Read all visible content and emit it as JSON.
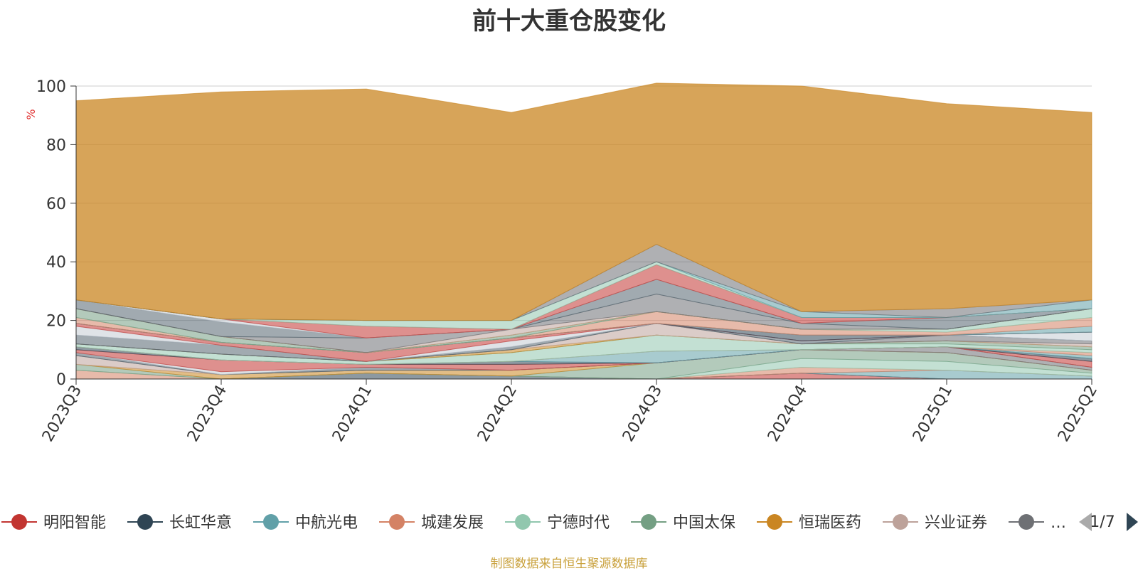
{
  "title": "前十大重仓股变化",
  "footer": "制图数据来自恒生聚源数据库",
  "legend_page": "1/7",
  "chart_data": {
    "type": "area",
    "stacked": true,
    "title": "前十大重仓股变化",
    "ylabel": "%",
    "ylim": [
      0,
      100
    ],
    "yticks": [
      0,
      20,
      40,
      60,
      80,
      100
    ],
    "grid": true,
    "legend_position": "bottom",
    "categories": [
      "2023Q3",
      "2023Q4",
      "2024Q1",
      "2024Q2",
      "2024Q3",
      "2024Q4",
      "2025Q1",
      "2025Q2"
    ],
    "series": [
      {
        "name": "明阳智能",
        "color": "#c23531",
        "values": [
          0,
          0,
          0,
          0,
          0,
          2,
          0,
          0
        ]
      },
      {
        "name": "长虹华意",
        "color": "#2f4554",
        "values": [
          0,
          0,
          2,
          1,
          0,
          0,
          0,
          0
        ]
      },
      {
        "name": "中航光电",
        "color": "#61a0a8",
        "values": [
          0,
          0,
          0,
          0,
          0,
          0,
          3,
          1
        ]
      },
      {
        "name": "城建发展",
        "color": "#d48265",
        "values": [
          3,
          0,
          0,
          0,
          0,
          2,
          0,
          0
        ]
      },
      {
        "name": "宁德时代",
        "color": "#91c7ae",
        "values": [
          0,
          0,
          0,
          0,
          0,
          3,
          3,
          1
        ]
      },
      {
        "name": "中国太保",
        "color": "#749f83",
        "values": [
          2,
          0,
          0,
          0,
          5.5,
          3,
          3,
          1
        ]
      },
      {
        "name": "恒瑞医药",
        "color": "#ca8622",
        "values": [
          0,
          1.5,
          1,
          2,
          0,
          0,
          0,
          0
        ]
      },
      {
        "name": "兴业证券",
        "color": "#bda29a",
        "values": [
          3,
          0,
          0,
          0,
          0,
          0,
          0,
          0
        ]
      },
      {
        "name": "…",
        "color": "#6e7074",
        "values": [
          0,
          0,
          0,
          0,
          0,
          0,
          2,
          1
        ]
      },
      {
        "name": "",
        "color": "#546570",
        "values": [
          1,
          0,
          1,
          0,
          0,
          0,
          0,
          0
        ]
      },
      {
        "name": "",
        "color": "#c4ccd3",
        "values": [
          0,
          1,
          0,
          0,
          0,
          0,
          0,
          0
        ]
      },
      {
        "name": "",
        "color": "#c23531",
        "values": [
          1,
          4,
          1,
          2,
          0,
          0,
          0,
          2
        ]
      },
      {
        "name": "",
        "color": "#2f4554",
        "values": [
          1,
          0,
          0,
          1,
          0,
          0,
          0,
          1
        ]
      },
      {
        "name": "",
        "color": "#61a0a8",
        "values": [
          0,
          0,
          0,
          0,
          4,
          0,
          0,
          1
        ]
      },
      {
        "name": "",
        "color": "#d48265",
        "values": [
          0,
          0,
          0,
          0,
          0,
          0,
          0,
          1
        ]
      },
      {
        "name": "",
        "color": "#91c7ae",
        "values": [
          1,
          2,
          1,
          3,
          5.5,
          2,
          1,
          1
        ]
      },
      {
        "name": "",
        "color": "#749f83",
        "values": [
          0,
          0,
          0,
          0,
          0,
          0,
          1,
          1
        ]
      },
      {
        "name": "",
        "color": "#ca8622",
        "values": [
          0,
          0,
          0,
          1,
          0,
          0,
          0,
          0
        ]
      },
      {
        "name": "",
        "color": "#bda29a",
        "values": [
          0,
          0,
          0,
          0,
          4,
          0,
          0,
          1
        ]
      },
      {
        "name": "",
        "color": "#6e7074",
        "values": [
          0,
          0,
          0,
          0,
          0,
          0,
          2,
          1
        ]
      },
      {
        "name": "",
        "color": "#546570",
        "values": [
          3,
          3,
          0,
          1,
          0,
          1,
          0,
          0
        ]
      },
      {
        "name": "",
        "color": "#c4ccd3",
        "values": [
          3,
          0,
          0,
          2,
          0,
          0,
          0,
          3
        ]
      },
      {
        "name": "",
        "color": "#c23531",
        "values": [
          1,
          1,
          3,
          1,
          0,
          0,
          0,
          0
        ]
      },
      {
        "name": "",
        "color": "#2f4554",
        "values": [
          0,
          0,
          0,
          0,
          0,
          2,
          0,
          0
        ]
      },
      {
        "name": "",
        "color": "#61a0a8",
        "values": [
          0,
          0,
          0,
          0,
          0,
          0,
          0,
          2
        ]
      },
      {
        "name": "",
        "color": "#d48265",
        "values": [
          2,
          0,
          0,
          0,
          4,
          2,
          1,
          3
        ]
      },
      {
        "name": "",
        "color": "#91c7ae",
        "values": [
          0,
          0,
          0,
          0,
          0,
          0,
          1,
          3
        ]
      },
      {
        "name": "",
        "color": "#749f83",
        "values": [
          3,
          2,
          0,
          1,
          0,
          0,
          0,
          0
        ]
      },
      {
        "name": "",
        "color": "#ca8622",
        "values": [
          0,
          0,
          0,
          0,
          0,
          0,
          0,
          0
        ]
      },
      {
        "name": "",
        "color": "#bda29a",
        "values": [
          0,
          0,
          0,
          2,
          0,
          0,
          0,
          0
        ]
      },
      {
        "name": "",
        "color": "#6e7074",
        "values": [
          0,
          0,
          5,
          0,
          6,
          2,
          0,
          0
        ]
      },
      {
        "name": "",
        "color": "#546570",
        "values": [
          3,
          5,
          0,
          0,
          5,
          0,
          4,
          0
        ]
      },
      {
        "name": "",
        "color": "#c4ccd3",
        "values": [
          0,
          1,
          0,
          0,
          0,
          0,
          0,
          0
        ]
      },
      {
        "name": "",
        "color": "#c23531",
        "values": [
          0,
          0,
          4,
          0,
          5,
          2,
          0,
          0
        ]
      },
      {
        "name": "",
        "color": "#91c7ae",
        "values": [
          0,
          0,
          2,
          3,
          1,
          0,
          0,
          0
        ]
      },
      {
        "name": "",
        "color": "#61a0a8",
        "values": [
          0,
          0,
          0,
          0,
          0,
          2,
          0,
          3
        ]
      },
      {
        "name": "",
        "color": "#6e7074",
        "values": [
          0,
          0,
          0,
          0,
          6,
          0,
          3,
          0
        ]
      },
      {
        "name": "",
        "color": "#ca8622",
        "values": [
          68,
          77.5,
          79,
          71,
          55,
          77,
          70,
          64
        ]
      }
    ]
  }
}
